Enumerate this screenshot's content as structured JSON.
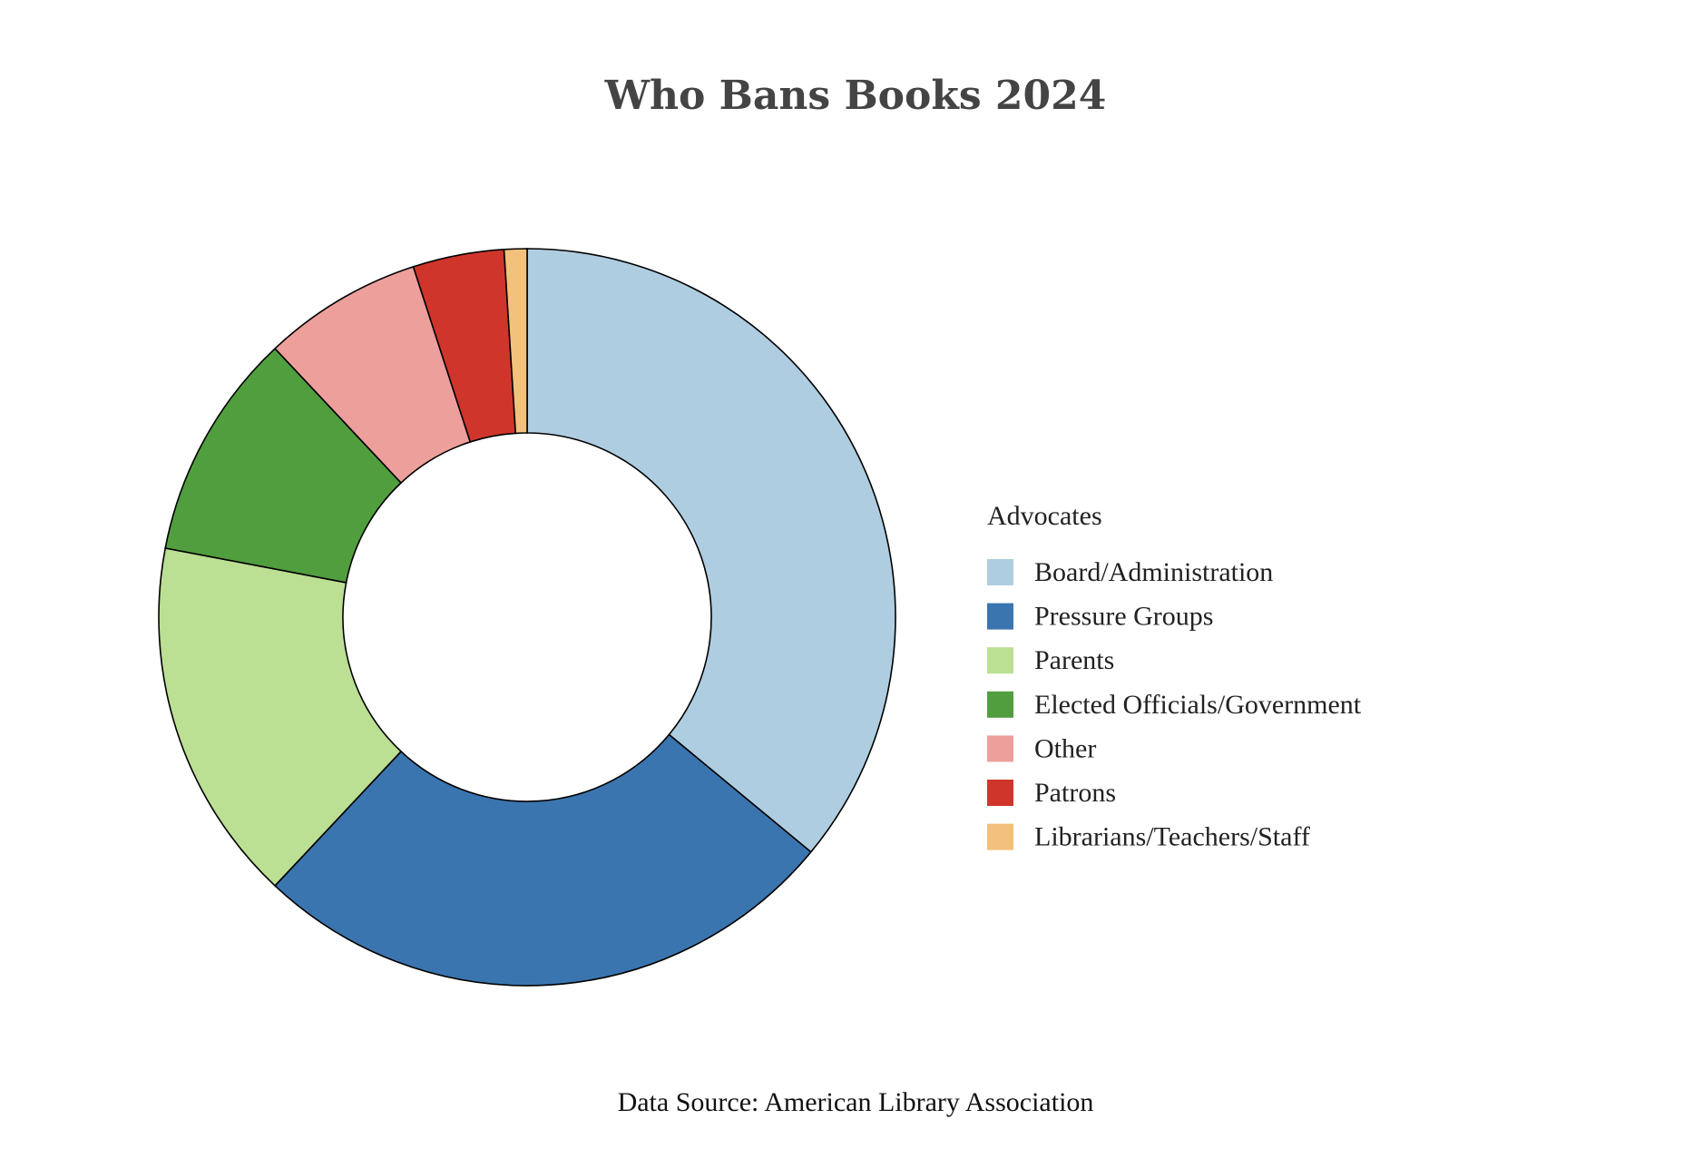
{
  "chart_data": {
    "type": "pie",
    "title": "Who Bans Books 2024",
    "hole": 0.5,
    "sort": "clockwise-from-top",
    "legend": {
      "title": "Advocates",
      "placement": "right"
    },
    "categories": [
      "Board/Administration",
      "Pressure Groups",
      "Parents",
      "Elected Officials/Government",
      "Other",
      "Patrons",
      "Librarians/Teachers/Staff"
    ],
    "values": [
      36,
      26,
      16,
      10,
      7,
      4,
      1
    ],
    "colors": [
      "#aecde1",
      "#3b75af",
      "#bbdf93",
      "#519e3e",
      "#ed9f9b",
      "#d0352b",
      "#f3c17b"
    ],
    "annotation": "Data Source: American Library Association"
  }
}
